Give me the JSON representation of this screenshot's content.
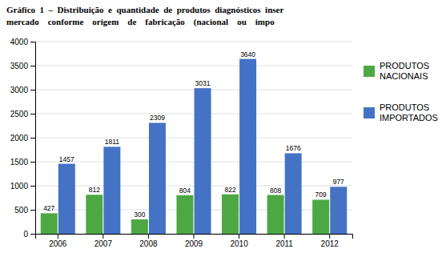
{
  "chart_data": {
    "type": "bar",
    "title": "Gráfico  1  –  Distribuição  e  quantidade  de  produtos  diagnósticos  inser\nmercado    conforme    origem    de    fabricação    (nacional    ou    impo",
    "categories": [
      "2006",
      "2007",
      "2008",
      "2009",
      "2010",
      "2011",
      "2012"
    ],
    "series": [
      {
        "name": "PRODUTOS\nNACIONAIS",
        "color": "#4DA843",
        "values": [
          427,
          812,
          300,
          804,
          822,
          808,
          709
        ]
      },
      {
        "name": "PRODUTOS\nIMPORTADOS",
        "color": "#4472C4",
        "values": [
          1457,
          1811,
          2309,
          3031,
          3640,
          1676,
          977
        ]
      }
    ],
    "ylim": [
      0,
      4000
    ],
    "yticks": [
      0,
      500,
      1000,
      1500,
      2000,
      2500,
      3000,
      3500,
      4000
    ],
    "grid": true,
    "legend": "right",
    "data_labels": true
  }
}
